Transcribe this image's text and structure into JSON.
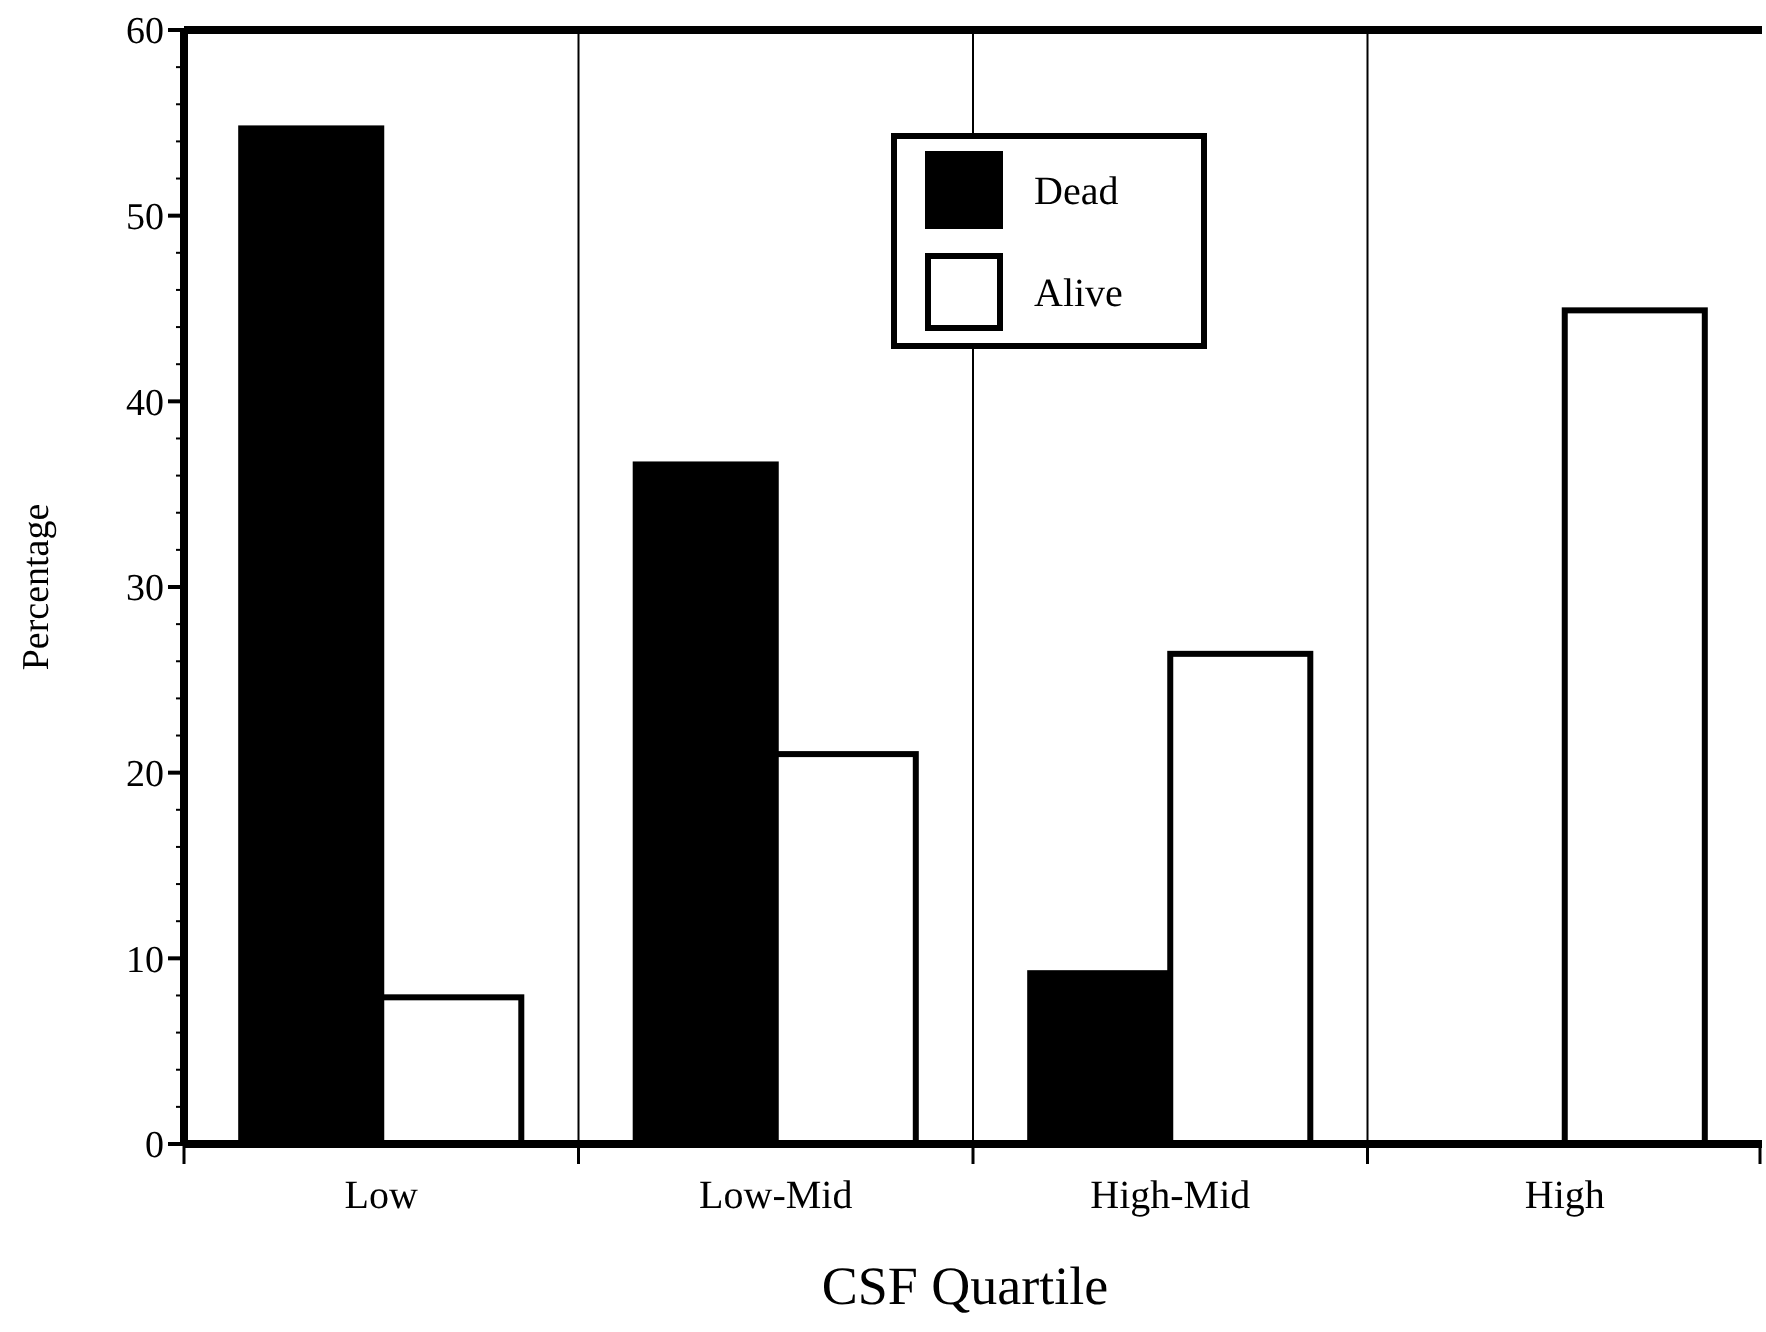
{
  "chart_data": {
    "type": "bar",
    "xlabel": "CSF Quartile",
    "ylabel": "Percentage",
    "categories": [
      "Low",
      "Low-Mid",
      "High-Mid",
      "High"
    ],
    "series": [
      {
        "name": "Dead",
        "color": "#000000",
        "values": [
          54.7,
          36.6,
          9.2,
          0
        ]
      },
      {
        "name": "Alive",
        "color": "#ffffff",
        "values": [
          7.9,
          21.0,
          26.4,
          44.9
        ]
      }
    ],
    "ylim": [
      0,
      60
    ],
    "yticks": [
      0,
      10,
      20,
      30,
      40,
      50,
      60
    ],
    "grid": "x",
    "legend": "top"
  }
}
